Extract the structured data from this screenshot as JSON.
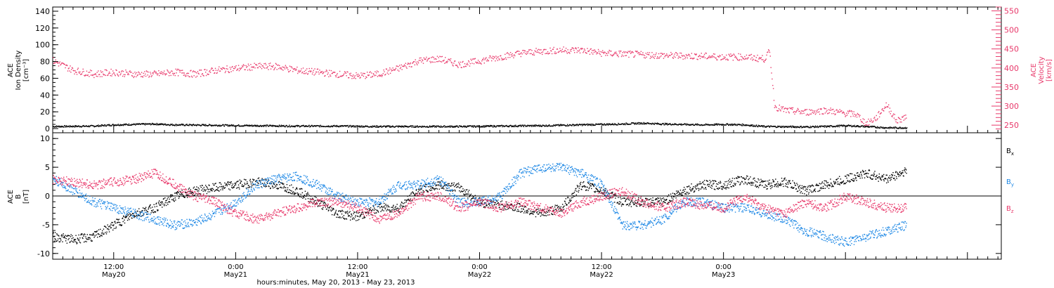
{
  "colors": {
    "black": "#000000",
    "pink": "#e8386a",
    "blue": "#1e88e5"
  },
  "chart_data": [
    {
      "type": "scatter",
      "panel": "density-velocity",
      "ylabel_left": [
        "ACE",
        "Ion Density",
        "[cm⁻³]"
      ],
      "ylabel_right": [
        "ACE",
        "Velocity",
        "[km/s]"
      ],
      "ylim_left": [
        -5,
        145
      ],
      "ylim_right": [
        230,
        560
      ],
      "left_ticks": [
        "0",
        "20",
        "40",
        "60",
        "80",
        "100",
        "120",
        "140"
      ],
      "right_ticks": [
        "250",
        "300",
        "350",
        "400",
        "450",
        "500",
        "550"
      ],
      "x_range_hours": [
        0,
        84
      ],
      "series": [
        {
          "axis": "left",
          "color": "#000000",
          "points": [
            [
              0,
              3
            ],
            [
              4,
              3.5
            ],
            [
              6,
              5
            ],
            [
              8,
              5.5
            ],
            [
              10,
              6
            ],
            [
              12,
              5
            ],
            [
              16,
              4.5
            ],
            [
              20,
              4
            ],
            [
              24,
              3.5
            ],
            [
              28,
              3.5
            ],
            [
              32,
              3
            ],
            [
              36,
              3
            ],
            [
              40,
              3
            ],
            [
              44,
              3.5
            ],
            [
              48,
              4
            ],
            [
              52,
              5
            ],
            [
              56,
              6
            ],
            [
              58,
              7
            ],
            [
              60,
              6
            ],
            [
              64,
              5
            ],
            [
              66,
              5.5
            ],
            [
              68,
              5
            ],
            [
              70,
              3
            ],
            [
              74,
              2.5
            ],
            [
              76,
              3
            ],
            [
              78,
              4
            ],
            [
              80,
              3
            ],
            [
              82,
              1.5
            ],
            [
              84,
              1.5
            ]
          ]
        },
        {
          "axis": "right",
          "color": "#e8386a",
          "points": [
            [
              0,
              420
            ],
            [
              2,
              395
            ],
            [
              4,
              385
            ],
            [
              6,
              390
            ],
            [
              8,
              385
            ],
            [
              10,
              385
            ],
            [
              12,
              390
            ],
            [
              14,
              385
            ],
            [
              16,
              395
            ],
            [
              18,
              400
            ],
            [
              20,
              405
            ],
            [
              22,
              405
            ],
            [
              24,
              395
            ],
            [
              26,
              390
            ],
            [
              28,
              385
            ],
            [
              30,
              380
            ],
            [
              32,
              385
            ],
            [
              34,
              400
            ],
            [
              36,
              420
            ],
            [
              38,
              425
            ],
            [
              40,
              410
            ],
            [
              42,
              420
            ],
            [
              44,
              430
            ],
            [
              46,
              440
            ],
            [
              48,
              445
            ],
            [
              50,
              448
            ],
            [
              52,
              448
            ],
            [
              54,
              440
            ],
            [
              56,
              438
            ],
            [
              58,
              436
            ],
            [
              60,
              434
            ],
            [
              62,
              433
            ],
            [
              64,
              432
            ],
            [
              66,
              430
            ],
            [
              68,
              430
            ],
            [
              70,
              425
            ],
            [
              70.5,
              445
            ],
            [
              71,
              300
            ],
            [
              72,
              290
            ],
            [
              74,
              285
            ],
            [
              76,
              290
            ],
            [
              78,
              282
            ],
            [
              79,
              280
            ],
            [
              80,
              255
            ],
            [
              81,
              270
            ],
            [
              82,
              305
            ],
            [
              83,
              262
            ],
            [
              84,
              275
            ]
          ]
        }
      ]
    },
    {
      "type": "scatter",
      "panel": "magnetic-field",
      "ylabel": [
        "ACE",
        "B",
        "[nT]"
      ],
      "ylim": [
        -11,
        11
      ],
      "ticks": [
        "-10",
        "-5",
        "0",
        "5",
        "10"
      ],
      "x_range_hours": [
        0,
        84
      ],
      "series": [
        {
          "name": "Bx",
          "color": "#000000",
          "points": [
            [
              0,
              -7
            ],
            [
              2,
              -7.5
            ],
            [
              4,
              -7
            ],
            [
              6,
              -5
            ],
            [
              8,
              -3
            ],
            [
              10,
              -2
            ],
            [
              12,
              0
            ],
            [
              14,
              1
            ],
            [
              16,
              1.5
            ],
            [
              18,
              2
            ],
            [
              20,
              2.5
            ],
            [
              22,
              2
            ],
            [
              24,
              1
            ],
            [
              26,
              -1
            ],
            [
              28,
              -3
            ],
            [
              30,
              -3.5
            ],
            [
              32,
              -2
            ],
            [
              34,
              -2
            ],
            [
              36,
              1
            ],
            [
              38,
              2
            ],
            [
              40,
              1.5
            ],
            [
              42,
              -1
            ],
            [
              44,
              -1.5
            ],
            [
              46,
              -2
            ],
            [
              48,
              -3
            ],
            [
              50,
              -2
            ],
            [
              52,
              2
            ],
            [
              54,
              1
            ],
            [
              56,
              -1
            ],
            [
              58,
              -1
            ],
            [
              60,
              -1
            ],
            [
              62,
              1
            ],
            [
              64,
              2
            ],
            [
              66,
              2
            ],
            [
              68,
              3
            ],
            [
              70,
              2
            ],
            [
              72,
              2.5
            ],
            [
              74,
              1
            ],
            [
              76,
              2
            ],
            [
              78,
              3
            ],
            [
              80,
              4
            ],
            [
              82,
              3
            ],
            [
              84,
              4.5
            ]
          ]
        },
        {
          "name": "By",
          "color": "#1e88e5",
          "points": [
            [
              0,
              3
            ],
            [
              2,
              1
            ],
            [
              4,
              -1
            ],
            [
              6,
              -2
            ],
            [
              8,
              -3
            ],
            [
              10,
              -4
            ],
            [
              12,
              -5
            ],
            [
              14,
              -4.5
            ],
            [
              16,
              -3
            ],
            [
              18,
              -1
            ],
            [
              20,
              2
            ],
            [
              22,
              3
            ],
            [
              24,
              3.5
            ],
            [
              26,
              2
            ],
            [
              28,
              0
            ],
            [
              30,
              -1
            ],
            [
              32,
              -1
            ],
            [
              34,
              2
            ],
            [
              36,
              2
            ],
            [
              38,
              3
            ],
            [
              40,
              -1
            ],
            [
              42,
              -1
            ],
            [
              44,
              0
            ],
            [
              46,
              4
            ],
            [
              48,
              5
            ],
            [
              50,
              5
            ],
            [
              52,
              4
            ],
            [
              54,
              2
            ],
            [
              56,
              -5
            ],
            [
              58,
              -5
            ],
            [
              60,
              -4
            ],
            [
              62,
              -1
            ],
            [
              64,
              -1
            ],
            [
              66,
              -2
            ],
            [
              68,
              -2
            ],
            [
              70,
              -3
            ],
            [
              72,
              -4
            ],
            [
              74,
              -6
            ],
            [
              76,
              -7
            ],
            [
              78,
              -8
            ],
            [
              80,
              -7
            ],
            [
              82,
              -6
            ],
            [
              84,
              -5
            ]
          ]
        },
        {
          "name": "Bz",
          "color": "#e8386a",
          "points": [
            [
              0,
              3
            ],
            [
              2,
              2.5
            ],
            [
              4,
              2
            ],
            [
              6,
              2.5
            ],
            [
              8,
              3
            ],
            [
              10,
              4
            ],
            [
              12,
              2
            ],
            [
              14,
              0
            ],
            [
              16,
              -1
            ],
            [
              18,
              -3
            ],
            [
              20,
              -4
            ],
            [
              22,
              -3
            ],
            [
              24,
              -2
            ],
            [
              26,
              -1
            ],
            [
              28,
              -1
            ],
            [
              30,
              -2
            ],
            [
              32,
              -4
            ],
            [
              34,
              -3
            ],
            [
              36,
              0
            ],
            [
              38,
              0
            ],
            [
              40,
              -2
            ],
            [
              42,
              -1
            ],
            [
              44,
              -2
            ],
            [
              46,
              -1
            ],
            [
              48,
              -2
            ],
            [
              50,
              -3
            ],
            [
              52,
              -1
            ],
            [
              54,
              0
            ],
            [
              56,
              1
            ],
            [
              58,
              -1
            ],
            [
              60,
              -2
            ],
            [
              62,
              -1
            ],
            [
              64,
              -1.5
            ],
            [
              66,
              -2
            ],
            [
              68,
              0
            ],
            [
              70,
              -2
            ],
            [
              72,
              -3
            ],
            [
              74,
              -1
            ],
            [
              76,
              -2
            ],
            [
              78,
              0
            ],
            [
              80,
              -1
            ],
            [
              82,
              -2
            ],
            [
              84,
              -2
            ]
          ]
        }
      ],
      "legend": [
        "B",
        "B",
        "B"
      ],
      "legend_subscripts": [
        "x",
        "y",
        "z"
      ]
    }
  ],
  "x_axis": {
    "tick_labels": [
      {
        "hours": 6,
        "time": "12:00",
        "day": "May20"
      },
      {
        "hours": 18,
        "time": "0:00",
        "day": "May21"
      },
      {
        "hours": 30,
        "time": "12:00",
        "day": "May21"
      },
      {
        "hours": 42,
        "time": "0:00",
        "day": "May22"
      },
      {
        "hours": 54,
        "time": "12:00",
        "day": "May22"
      },
      {
        "hours": 66,
        "time": "0:00",
        "day": "May23"
      }
    ],
    "label": "hours:minutes, May 20, 2013 - May 23, 2013"
  }
}
